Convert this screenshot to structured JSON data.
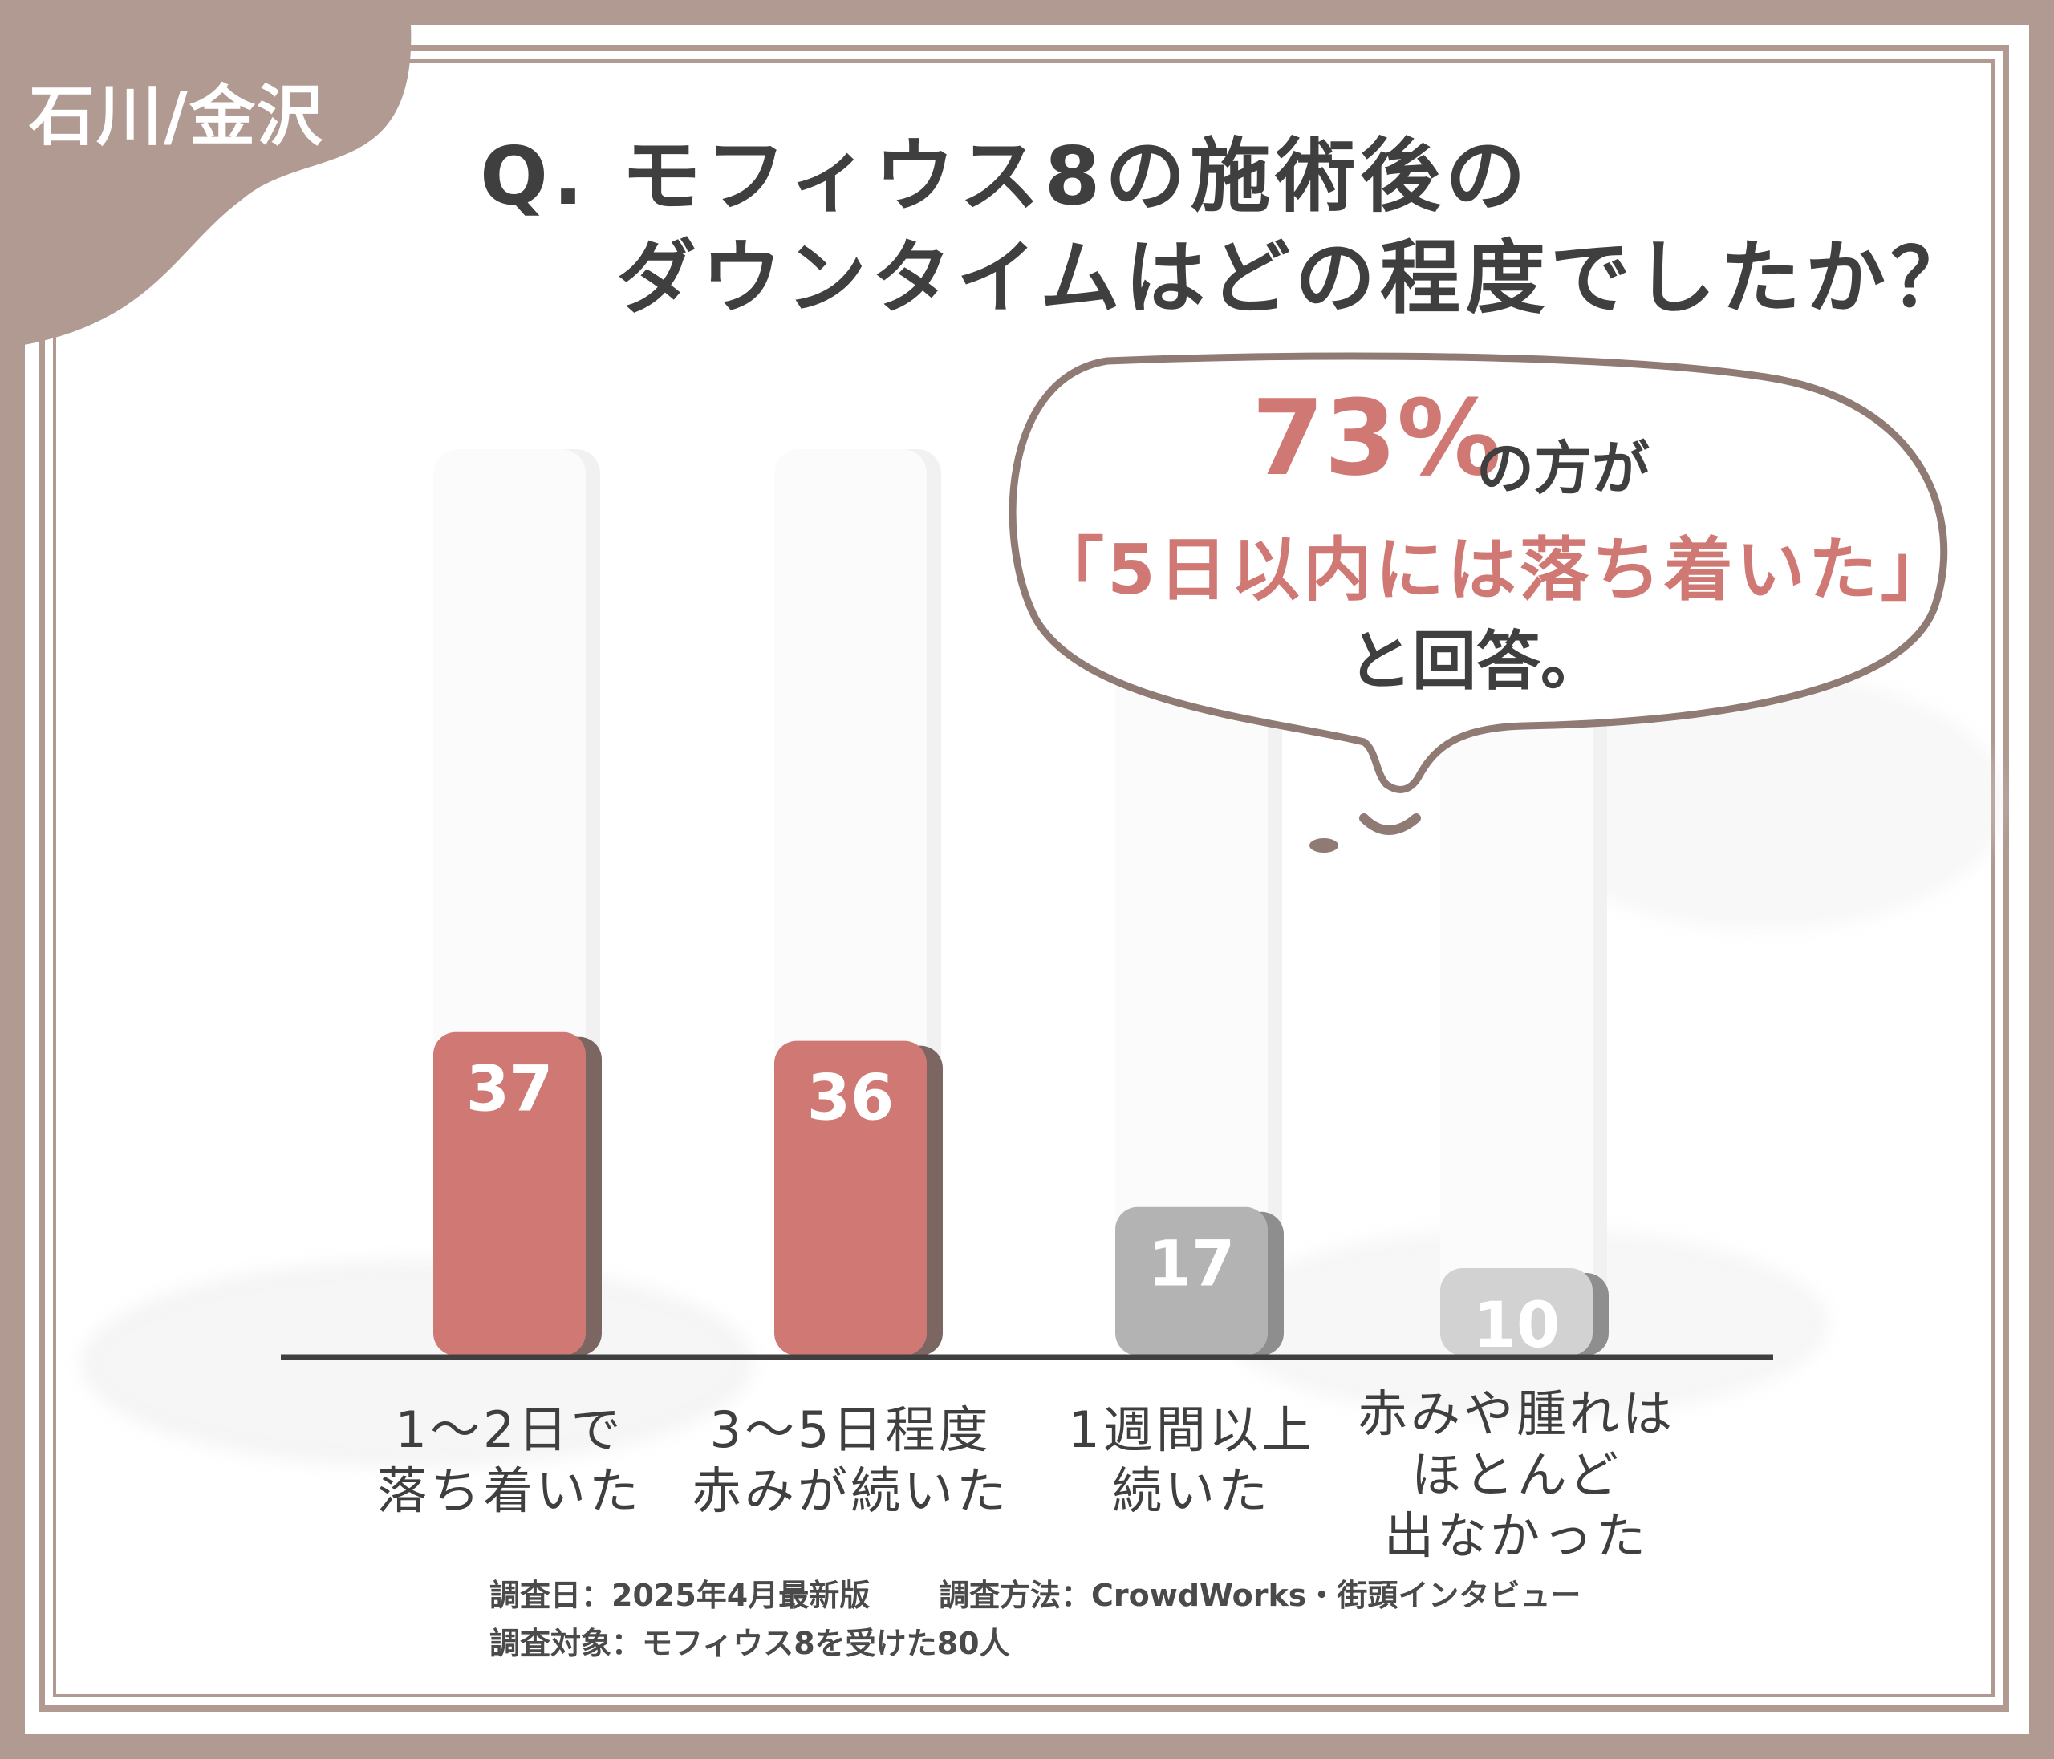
{
  "tag": {
    "label": "石川/金沢"
  },
  "question": {
    "line1": "Q. モフィウス8の施術後の",
    "line2": "ダウンタイムはどの程度でしたか？"
  },
  "callout": {
    "percent": "73%",
    "after_percent": "の方が",
    "quote": "「5日以内には落ち着いた」",
    "tail": "と回答。"
  },
  "colors": {
    "frame": "#b09a92",
    "accent_red": "#cf7874",
    "bar_grey": "#b3b3b3",
    "bar_light_grey": "#d2d2d2",
    "text_dark": "#3f3f3f"
  },
  "chart_data": {
    "type": "bar",
    "categories": [
      "1〜2日で\n落ち着いた",
      "3〜5日程度\n赤みが続いた",
      "1週間以上\n続いた",
      "赤みや腫れは\nほとんど\n出なかった"
    ],
    "values": [
      37,
      36,
      17,
      10
    ],
    "value_labels": [
      "37",
      "36",
      "17",
      "10"
    ],
    "bar_colors": [
      "#cf7874",
      "#cf7874",
      "#b3b3b3",
      "#d2d2d2"
    ],
    "title": "",
    "xlabel": "",
    "ylabel": "",
    "ylim": [
      0,
      80
    ],
    "grid": false,
    "legend": "none"
  },
  "footnotes": {
    "date": "調査日：2025年4月最新版",
    "method": "調査方法：CrowdWorks・街頭インタビュー",
    "target": "調査対象：モフィウス8を受けた80人"
  }
}
